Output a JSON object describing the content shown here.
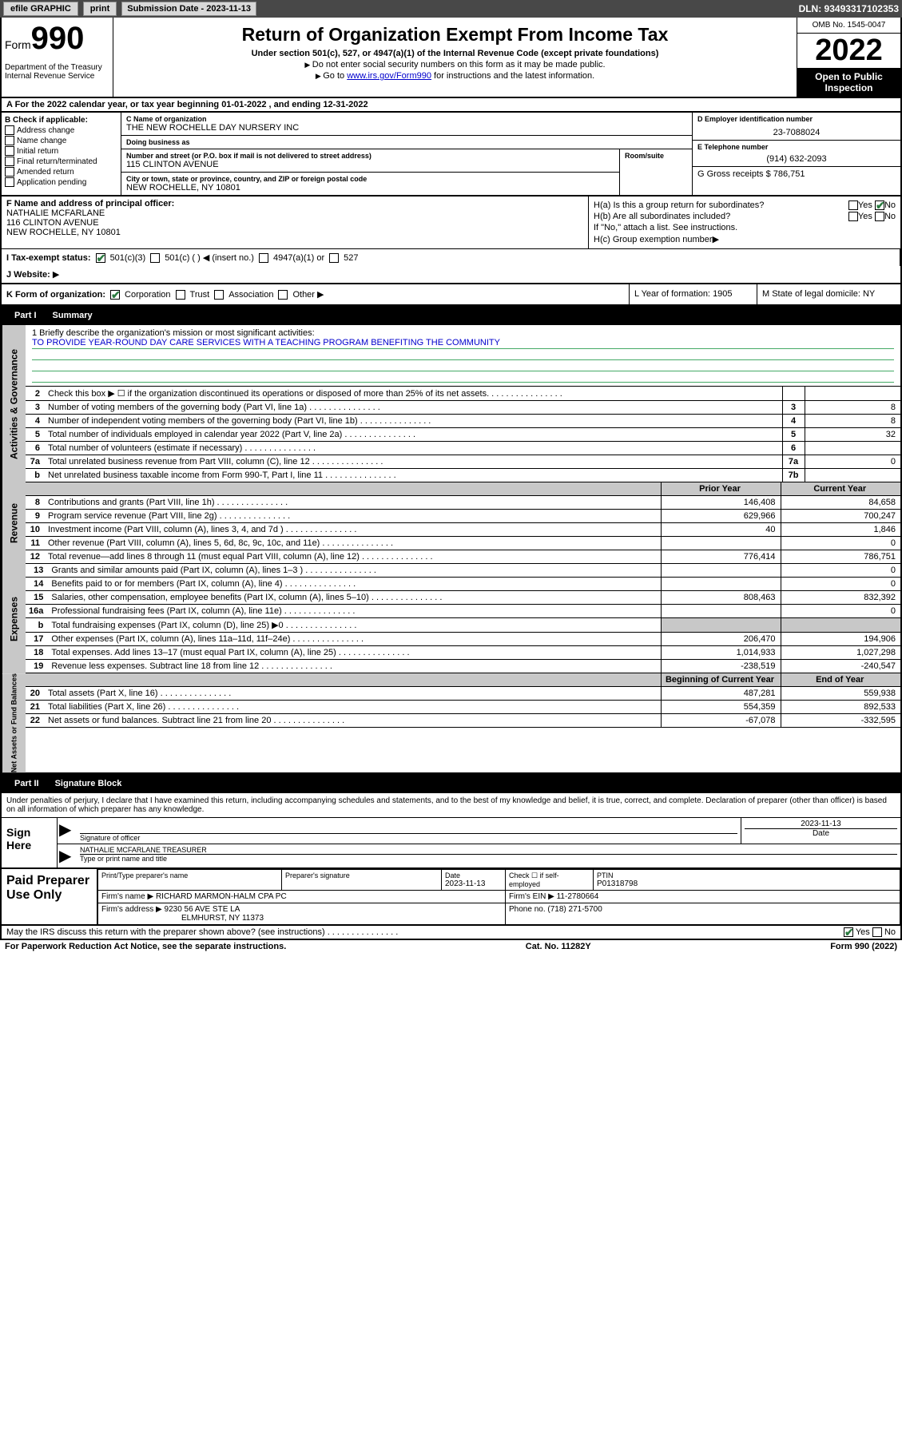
{
  "top": {
    "efile": "efile GRAPHIC",
    "print": "print",
    "submission_label": "Submission Date - ",
    "submission_date": "2023-11-13",
    "dln": "DLN: 93493317102353"
  },
  "header": {
    "form_label": "Form",
    "form_num": "990",
    "dept": "Department of the Treasury Internal Revenue Service",
    "title": "Return of Organization Exempt From Income Tax",
    "subtitle": "Under section 501(c), 527, or 4947(a)(1) of the Internal Revenue Code (except private foundations)",
    "note1": "Do not enter social security numbers on this form as it may be made public.",
    "note2_pre": "Go to ",
    "note2_link": "www.irs.gov/Form990",
    "note2_post": " for instructions and the latest information.",
    "omb": "OMB No. 1545-0047",
    "year": "2022",
    "open": "Open to Public Inspection"
  },
  "row_a": "A For the 2022 calendar year, or tax year beginning 01-01-2022  , and ending 12-31-2022",
  "b": {
    "hdr": "B Check if applicable:",
    "items": [
      "Address change",
      "Name change",
      "Initial return",
      "Final return/terminated",
      "Amended return",
      "Application pending"
    ]
  },
  "c": {
    "name_label": "C Name of organization",
    "name": "THE NEW ROCHELLE DAY NURSERY INC",
    "dba_label": "Doing business as",
    "dba": "",
    "addr_label": "Number and street (or P.O. box if mail is not delivered to street address)",
    "addr": "115 CLINTON AVENUE",
    "room_label": "Room/suite",
    "room": "",
    "city_label": "City or town, state or province, country, and ZIP or foreign postal code",
    "city": "NEW ROCHELLE, NY  10801"
  },
  "d": {
    "ein_label": "D Employer identification number",
    "ein": "23-7088024",
    "phone_label": "E Telephone number",
    "phone": "(914) 632-2093",
    "gross_label": "G Gross receipts $",
    "gross": "786,751"
  },
  "f": {
    "label": "F  Name and address of principal officer:",
    "name": "NATHALIE MCFARLANE",
    "addr1": "116 CLINTON AVENUE",
    "addr2": "NEW ROCHELLE, NY  10801"
  },
  "h": {
    "a_label": "H(a)  Is this a group return for subordinates?",
    "a_yes": "Yes",
    "a_no": "No",
    "b_label": "H(b)  Are all subordinates included?",
    "b_note": "If \"No,\" attach a list. See instructions.",
    "c_label": "H(c)  Group exemption number"
  },
  "i": {
    "label": "I  Tax-exempt status:",
    "opts": [
      "501(c)(3)",
      "501(c) (  ) ◀ (insert no.)",
      "4947(a)(1) or",
      "527"
    ]
  },
  "j": {
    "label": "J  Website:"
  },
  "k": {
    "label": "K Form of organization:",
    "opts": [
      "Corporation",
      "Trust",
      "Association",
      "Other ▶"
    ]
  },
  "l": {
    "label": "L Year of formation:",
    "val": "1905"
  },
  "m": {
    "label": "M State of legal domicile:",
    "val": "NY"
  },
  "part1": {
    "num": "Part I",
    "title": "Summary"
  },
  "mission": {
    "q": "1   Briefly describe the organization's mission or most significant activities:",
    "text": "TO PROVIDE YEAR-ROUND DAY CARE SERVICES WITH A TEACHING PROGRAM BENEFITING THE COMMUNITY"
  },
  "gov_rows": [
    {
      "n": "2",
      "d": "Check this box ▶ ☐  if the organization discontinued its operations or disposed of more than 25% of its net assets.",
      "box": "",
      "v": ""
    },
    {
      "n": "3",
      "d": "Number of voting members of the governing body (Part VI, line 1a)",
      "box": "3",
      "v": "8"
    },
    {
      "n": "4",
      "d": "Number of independent voting members of the governing body (Part VI, line 1b)",
      "box": "4",
      "v": "8"
    },
    {
      "n": "5",
      "d": "Total number of individuals employed in calendar year 2022 (Part V, line 2a)",
      "box": "5",
      "v": "32"
    },
    {
      "n": "6",
      "d": "Total number of volunteers (estimate if necessary)",
      "box": "6",
      "v": ""
    },
    {
      "n": "7a",
      "d": "Total unrelated business revenue from Part VIII, column (C), line 12",
      "box": "7a",
      "v": "0"
    },
    {
      "n": "b",
      "d": "Net unrelated business taxable income from Form 990-T, Part I, line 11",
      "box": "7b",
      "v": ""
    }
  ],
  "rev_hdr": {
    "py": "Prior Year",
    "cy": "Current Year"
  },
  "rev_rows": [
    {
      "n": "8",
      "d": "Contributions and grants (Part VIII, line 1h)",
      "py": "146,408",
      "cy": "84,658"
    },
    {
      "n": "9",
      "d": "Program service revenue (Part VIII, line 2g)",
      "py": "629,966",
      "cy": "700,247"
    },
    {
      "n": "10",
      "d": "Investment income (Part VIII, column (A), lines 3, 4, and 7d )",
      "py": "40",
      "cy": "1,846"
    },
    {
      "n": "11",
      "d": "Other revenue (Part VIII, column (A), lines 5, 6d, 8c, 9c, 10c, and 11e)",
      "py": "",
      "cy": "0"
    },
    {
      "n": "12",
      "d": "Total revenue—add lines 8 through 11 (must equal Part VIII, column (A), line 12)",
      "py": "776,414",
      "cy": "786,751"
    }
  ],
  "exp_rows": [
    {
      "n": "13",
      "d": "Grants and similar amounts paid (Part IX, column (A), lines 1–3 )",
      "py": "",
      "cy": "0"
    },
    {
      "n": "14",
      "d": "Benefits paid to or for members (Part IX, column (A), line 4)",
      "py": "",
      "cy": "0"
    },
    {
      "n": "15",
      "d": "Salaries, other compensation, employee benefits (Part IX, column (A), lines 5–10)",
      "py": "808,463",
      "cy": "832,392"
    },
    {
      "n": "16a",
      "d": "Professional fundraising fees (Part IX, column (A), line 11e)",
      "py": "",
      "cy": "0"
    },
    {
      "n": "b",
      "d": "Total fundraising expenses (Part IX, column (D), line 25) ▶0",
      "py": "shaded",
      "cy": "shaded"
    },
    {
      "n": "17",
      "d": "Other expenses (Part IX, column (A), lines 11a–11d, 11f–24e)",
      "py": "206,470",
      "cy": "194,906"
    },
    {
      "n": "18",
      "d": "Total expenses. Add lines 13–17 (must equal Part IX, column (A), line 25)",
      "py": "1,014,933",
      "cy": "1,027,298"
    },
    {
      "n": "19",
      "d": "Revenue less expenses. Subtract line 18 from line 12",
      "py": "-238,519",
      "cy": "-240,547"
    }
  ],
  "na_hdr": {
    "py": "Beginning of Current Year",
    "cy": "End of Year"
  },
  "na_rows": [
    {
      "n": "20",
      "d": "Total assets (Part X, line 16)",
      "py": "487,281",
      "cy": "559,938"
    },
    {
      "n": "21",
      "d": "Total liabilities (Part X, line 26)",
      "py": "554,359",
      "cy": "892,533"
    },
    {
      "n": "22",
      "d": "Net assets or fund balances. Subtract line 21 from line 20",
      "py": "-67,078",
      "cy": "-332,595"
    }
  ],
  "part2": {
    "num": "Part II",
    "title": "Signature Block"
  },
  "sig": {
    "decl": "Under penalties of perjury, I declare that I have examined this return, including accompanying schedules and statements, and to the best of my knowledge and belief, it is true, correct, and complete. Declaration of preparer (other than officer) is based on all information of which preparer has any knowledge.",
    "sign_here": "Sign Here",
    "sig_label": "Signature of officer",
    "date": "2023-11-13",
    "date_label": "Date",
    "name": "NATHALIE MCFARLANE  TREASURER",
    "name_label": "Type or print name and title"
  },
  "prep": {
    "title": "Paid Preparer Use Only",
    "ptname_label": "Print/Type preparer's name",
    "ptname": "",
    "psig_label": "Preparer's signature",
    "pdate_label": "Date",
    "pdate": "2023-11-13",
    "check_label": "Check ☐ if self-employed",
    "ptin_label": "PTIN",
    "ptin": "P01318798",
    "firm_name_label": "Firm's name   ▶",
    "firm_name": "RICHARD MARMON-HALM CPA PC",
    "firm_ein_label": "Firm's EIN ▶",
    "firm_ein": "11-2780664",
    "firm_addr_label": "Firm's address ▶",
    "firm_addr1": "9230 56 AVE STE LA",
    "firm_addr2": "ELMHURST, NY  11373",
    "firm_phone_label": "Phone no.",
    "firm_phone": "(718) 271-5700"
  },
  "discuss": {
    "q": "May the IRS discuss this return with the preparer shown above? (see instructions)",
    "yes": "Yes",
    "no": "No"
  },
  "footer": {
    "left": "For Paperwork Reduction Act Notice, see the separate instructions.",
    "mid": "Cat. No. 11282Y",
    "right_pre": "Form ",
    "right_form": "990",
    "right_post": " (2022)"
  },
  "side_labels": {
    "gov": "Activities & Governance",
    "rev": "Revenue",
    "exp": "Expenses",
    "na": "Net Assets or Fund Balances"
  }
}
